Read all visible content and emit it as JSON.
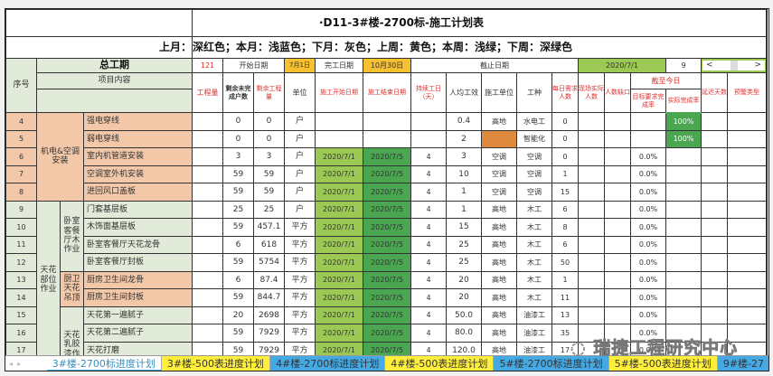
{
  "sheet": {
    "title": "·D11-3#楼-2700标-施工计划表",
    "legend": "上月：深红色；本月：浅蓝色；下月：灰色；上周：黄色；本周：浅绿；下周：深绿色"
  },
  "header": {
    "seq": "序号",
    "total_period": "总工期",
    "total_days": "121",
    "start_label": "开始日期",
    "start_value": "7月1日",
    "end_label": "完工日期",
    "end_value": "10月30日",
    "cutoff_label": "截止日期",
    "cutoff_value": "2020/7/1",
    "cutoff_num": "9",
    "scroll_left": "<",
    "scroll_right": ">",
    "item_content": "项目内容",
    "qty": "工程量",
    "remaining_units": "剩余未完成户数",
    "remaining_qty": "剩余工程量",
    "unit": "单位",
    "plan_start": "施工开始日期",
    "plan_end": "施工结束日期",
    "duration": "持续工日（天）",
    "per_capita": "人均工效",
    "contractor": "施工单位",
    "trade": "工种",
    "daily_need": "每日需求人数",
    "onsite": "现场实际人数",
    "gap": "人数缺口",
    "as_of_today": "截至今日",
    "target_rate": "目标要求完成率",
    "actual_rate": "实际完成率",
    "delay_days": "延迟天数",
    "warning_type": "预警类型"
  },
  "groups": {
    "mep": "机电&空调安装",
    "ceiling": "天花部位作业",
    "bedroom_wood": "卧室客餐厅木作业",
    "kitchen_ceiling": "厨卫天花吊顶",
    "ceiling_latex": "天花乳胶漆作"
  },
  "rows": [
    {
      "no": "4",
      "name": "强电穿线",
      "qty": "",
      "ru": "0",
      "rq": "0",
      "unit": "户",
      "start": "",
      "end": "",
      "dur": "",
      "pc": "0.4",
      "con": "高地",
      "trade": "水电工",
      "need": "0",
      "site": "",
      "gap": "",
      "target": "",
      "actual": "100%"
    },
    {
      "no": "5",
      "name": "弱电穿线",
      "qty": "",
      "ru": "0",
      "rq": "0",
      "unit": "户",
      "start": "",
      "end": "",
      "dur": "",
      "pc": "2",
      "con": "",
      "trade": "智能化",
      "need": "0",
      "site": "",
      "gap": "",
      "target": "",
      "actual": "100%"
    },
    {
      "no": "6",
      "name": "室内机管道安装",
      "qty": "",
      "ru": "3",
      "rq": "3",
      "unit": "户",
      "start": "2020/7/1",
      "end": "2020/7/5",
      "dur": "4",
      "pc": "3",
      "con": "空调",
      "trade": "空调",
      "need": "0",
      "site": "",
      "gap": "",
      "target": "0.0%",
      "actual": ""
    },
    {
      "no": "7",
      "name": "空调室外机安装",
      "qty": "",
      "ru": "59",
      "rq": "59",
      "unit": "户",
      "start": "2020/7/1",
      "end": "2020/7/5",
      "dur": "4",
      "pc": "10",
      "con": "空调",
      "trade": "空调",
      "need": "1",
      "site": "",
      "gap": "",
      "target": "0.0%",
      "actual": ""
    },
    {
      "no": "8",
      "name": "进回风口盖板",
      "qty": "",
      "ru": "59",
      "rq": "59",
      "unit": "户",
      "start": "2020/7/1",
      "end": "2020/7/5",
      "dur": "4",
      "pc": "1",
      "con": "空调",
      "trade": "空调",
      "need": "15",
      "site": "",
      "gap": "",
      "target": "0.0%",
      "actual": ""
    },
    {
      "no": "9",
      "name": "门套基层板",
      "qty": "",
      "ru": "25",
      "rq": "25",
      "unit": "户",
      "start": "2020/7/1",
      "end": "2020/7/5",
      "dur": "4",
      "pc": "1",
      "con": "高地",
      "trade": "木工",
      "need": "6",
      "site": "",
      "gap": "",
      "target": "0.0%",
      "actual": ""
    },
    {
      "no": "10",
      "name": "木饰面基层板",
      "qty": "",
      "ru": "59",
      "rq": "457.1",
      "unit": "平方",
      "start": "2020/7/1",
      "end": "2020/7/5",
      "dur": "4",
      "pc": "15",
      "con": "高地",
      "trade": "木工",
      "need": "8",
      "site": "",
      "gap": "",
      "target": "0.0%",
      "actual": ""
    },
    {
      "no": "11",
      "name": "卧室客餐厅天花龙骨",
      "qty": "",
      "ru": "6",
      "rq": "618",
      "unit": "平方",
      "start": "2020/7/1",
      "end": "2020/7/5",
      "dur": "4",
      "pc": "25",
      "con": "高地",
      "trade": "木工",
      "need": "6",
      "site": "",
      "gap": "",
      "target": "0.0%",
      "actual": ""
    },
    {
      "no": "12",
      "name": "卧室客餐厅封板",
      "qty": "",
      "ru": "59",
      "rq": "5754",
      "unit": "平方",
      "start": "2020/7/1",
      "end": "2020/7/5",
      "dur": "4",
      "pc": "25",
      "con": "高地",
      "trade": "木工",
      "need": "50",
      "site": "",
      "gap": "",
      "target": "0.0%",
      "actual": ""
    },
    {
      "no": "13",
      "name": "厨房卫生间龙骨",
      "qty": "",
      "ru": "6",
      "rq": "87.4",
      "unit": "平方",
      "start": "2020/7/1",
      "end": "2020/7/5",
      "dur": "4",
      "pc": "20",
      "con": "高地",
      "trade": "木工",
      "need": "1",
      "site": "",
      "gap": "",
      "target": "0.0%",
      "actual": ""
    },
    {
      "no": "14",
      "name": "厨房卫生间封板",
      "qty": "",
      "ru": "59",
      "rq": "844.7",
      "unit": "平方",
      "start": "2020/7/1",
      "end": "2020/7/5",
      "dur": "4",
      "pc": "20",
      "con": "高地",
      "trade": "木工",
      "need": "11",
      "site": "",
      "gap": "",
      "target": "0.0%",
      "actual": ""
    },
    {
      "no": "15",
      "name": "天花第一遍腻子",
      "qty": "",
      "ru": "20",
      "rq": "2698",
      "unit": "平方",
      "start": "2020/7/1",
      "end": "2020/7/5",
      "dur": "4",
      "pc": "50.0",
      "con": "高地",
      "trade": "油漆工",
      "need": "13",
      "site": "",
      "gap": "",
      "target": "0.0%",
      "actual": ""
    },
    {
      "no": "16",
      "name": "天花第二遍腻子",
      "qty": "",
      "ru": "59",
      "rq": "7929",
      "unit": "平方",
      "start": "2020/7/1",
      "end": "2020/7/5",
      "dur": "4",
      "pc": "80.0",
      "con": "高地",
      "trade": "油漆工",
      "need": "35",
      "site": "",
      "gap": "",
      "target": "0.0%",
      "actual": ""
    },
    {
      "no": "17",
      "name": "天花打磨",
      "qty": "",
      "ru": "59",
      "rq": "7929",
      "unit": "平方",
      "start": "2020/7/1",
      "end": "2020/7/5",
      "dur": "4",
      "pc": "120.0",
      "con": "高地",
      "trade": "油漆工",
      "need": "17",
      "site": "",
      "gap": "",
      "target": "0.0%",
      "actual": ""
    }
  ],
  "tabs": [
    {
      "label": "3#楼-2700标进度计划"
    },
    {
      "label": "3#楼-500表进度计划"
    },
    {
      "label": "4#楼-2700标进度计划"
    },
    {
      "label": "4#楼-500表进度计划"
    },
    {
      "label": "5#楼-2700标进度计划"
    },
    {
      "label": "5#楼-500表进度计划"
    },
    {
      "label": "9#楼-27"
    }
  ],
  "watermark": "瑞捷工程研究中心",
  "colors": {
    "header_bg": "#e2ebd9",
    "mep_bg": "#f3c8a8",
    "yellow": "#f6c02e",
    "light_green": "#9cc954",
    "dark_green": "#4aa650",
    "orange_cell": "#e08a40",
    "tab_yellow": "#ffef3a",
    "tab_blue": "#45a9e3"
  }
}
